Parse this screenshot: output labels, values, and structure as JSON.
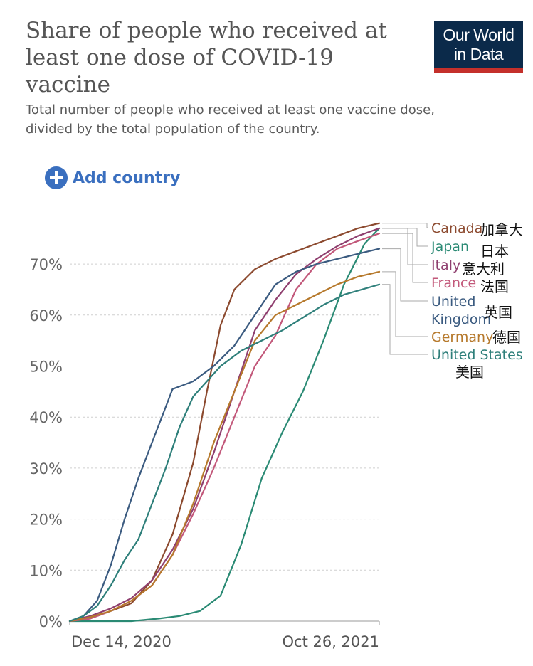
{
  "header": {
    "title": "Share of people who received at least one dose of COVID-19 vaccine",
    "subtitle": "Total number of people who received at least one vaccine dose, divided by the total population of the country.",
    "logo_line1": "Our World",
    "logo_line2": "in Data"
  },
  "controls": {
    "add_country_label": "Add country"
  },
  "annotations": {
    "canada_cn": "加拿大",
    "japan_cn": "日本",
    "italy_cn": "意大利",
    "france_cn": "法国",
    "uk_cn": "英国",
    "germany_cn": "德国",
    "us_cn": "美国"
  },
  "chart_data": {
    "type": "line",
    "title": "Share of people who received at least one dose of COVID-19 vaccine",
    "xlabel": "",
    "ylabel": "",
    "x_tick_labels": [
      "Dec 14, 2020",
      "Oct 26, 2021"
    ],
    "y_ticks": [
      0,
      10,
      20,
      30,
      40,
      50,
      60,
      70
    ],
    "y_tick_labels": [
      "0%",
      "10%",
      "20%",
      "30%",
      "40%",
      "50%",
      "60%",
      "70%"
    ],
    "xlim": [
      "2020-12-14",
      "2021-10-26"
    ],
    "ylim": [
      0,
      80
    ],
    "grid": "horizontal dashed",
    "legend": "right, line end labels",
    "series": [
      {
        "name": "Canada",
        "color": "#8c4a2f",
        "points": [
          [
            "2020-12-14",
            0
          ],
          [
            "2021-01-04",
            0.5
          ],
          [
            "2021-01-25",
            2
          ],
          [
            "2021-02-15",
            3.5
          ],
          [
            "2021-03-08",
            8
          ],
          [
            "2021-03-29",
            17
          ],
          [
            "2021-04-19",
            31
          ],
          [
            "2021-05-03",
            45
          ],
          [
            "2021-05-17",
            58
          ],
          [
            "2021-05-31",
            65
          ],
          [
            "2021-06-21",
            69
          ],
          [
            "2021-07-12",
            71
          ],
          [
            "2021-08-02",
            72.5
          ],
          [
            "2021-08-23",
            74
          ],
          [
            "2021-09-13",
            75.5
          ],
          [
            "2021-10-04",
            77
          ],
          [
            "2021-10-26",
            78
          ]
        ]
      },
      {
        "name": "Japan",
        "color": "#2a8a74",
        "points": [
          [
            "2020-12-14",
            0
          ],
          [
            "2021-02-15",
            0
          ],
          [
            "2021-03-15",
            0.5
          ],
          [
            "2021-04-05",
            1
          ],
          [
            "2021-04-26",
            2
          ],
          [
            "2021-05-17",
            5
          ],
          [
            "2021-06-07",
            15
          ],
          [
            "2021-06-28",
            28
          ],
          [
            "2021-07-19",
            37
          ],
          [
            "2021-08-09",
            45
          ],
          [
            "2021-08-30",
            55
          ],
          [
            "2021-09-20",
            66
          ],
          [
            "2021-10-11",
            74
          ],
          [
            "2021-10-26",
            77
          ]
        ]
      },
      {
        "name": "Italy",
        "color": "#8f3f6f",
        "points": [
          [
            "2020-12-14",
            0
          ],
          [
            "2021-01-04",
            1
          ],
          [
            "2021-01-25",
            2.5
          ],
          [
            "2021-02-15",
            4.5
          ],
          [
            "2021-03-08",
            8
          ],
          [
            "2021-03-29",
            14
          ],
          [
            "2021-04-19",
            22
          ],
          [
            "2021-05-10",
            33
          ],
          [
            "2021-05-31",
            45
          ],
          [
            "2021-06-21",
            57
          ],
          [
            "2021-07-12",
            63
          ],
          [
            "2021-08-02",
            68
          ],
          [
            "2021-08-23",
            71
          ],
          [
            "2021-09-13",
            73.5
          ],
          [
            "2021-10-04",
            75.5
          ],
          [
            "2021-10-26",
            77
          ]
        ]
      },
      {
        "name": "France",
        "color": "#c2587a",
        "points": [
          [
            "2020-12-14",
            0
          ],
          [
            "2021-01-04",
            0.5
          ],
          [
            "2021-01-25",
            2
          ],
          [
            "2021-02-15",
            4
          ],
          [
            "2021-03-08",
            7
          ],
          [
            "2021-03-29",
            13
          ],
          [
            "2021-04-19",
            21
          ],
          [
            "2021-05-10",
            30
          ],
          [
            "2021-05-31",
            40
          ],
          [
            "2021-06-21",
            50
          ],
          [
            "2021-07-12",
            56
          ],
          [
            "2021-08-02",
            65
          ],
          [
            "2021-08-23",
            70
          ],
          [
            "2021-09-13",
            73
          ],
          [
            "2021-10-04",
            74.5
          ],
          [
            "2021-10-26",
            76
          ]
        ]
      },
      {
        "name": "United Kingdom",
        "color": "#3b5b80",
        "points": [
          [
            "2020-12-14",
            0
          ],
          [
            "2020-12-28",
            1
          ],
          [
            "2021-01-11",
            4
          ],
          [
            "2021-01-25",
            11
          ],
          [
            "2021-02-08",
            20
          ],
          [
            "2021-02-22",
            28
          ],
          [
            "2021-03-08",
            35
          ],
          [
            "2021-03-22",
            42
          ],
          [
            "2021-03-29",
            45.5
          ],
          [
            "2021-04-19",
            47
          ],
          [
            "2021-05-10",
            50
          ],
          [
            "2021-05-31",
            54
          ],
          [
            "2021-06-21",
            60
          ],
          [
            "2021-07-12",
            66
          ],
          [
            "2021-08-02",
            68.5
          ],
          [
            "2021-08-23",
            70
          ],
          [
            "2021-09-13",
            71
          ],
          [
            "2021-10-04",
            72
          ],
          [
            "2021-10-26",
            73
          ]
        ]
      },
      {
        "name": "Germany",
        "color": "#b6792c",
        "points": [
          [
            "2020-12-14",
            0
          ],
          [
            "2021-01-04",
            0.8
          ],
          [
            "2021-01-25",
            2
          ],
          [
            "2021-02-15",
            4
          ],
          [
            "2021-03-08",
            7
          ],
          [
            "2021-03-29",
            13
          ],
          [
            "2021-04-19",
            23
          ],
          [
            "2021-05-10",
            35
          ],
          [
            "2021-05-31",
            45
          ],
          [
            "2021-06-21",
            55
          ],
          [
            "2021-07-12",
            60
          ],
          [
            "2021-08-02",
            62
          ],
          [
            "2021-08-23",
            64
          ],
          [
            "2021-09-13",
            66
          ],
          [
            "2021-10-04",
            67.5
          ],
          [
            "2021-10-26",
            68.5
          ]
        ]
      },
      {
        "name": "United States",
        "color": "#2e7f7a",
        "points": [
          [
            "2020-12-14",
            0
          ],
          [
            "2020-12-28",
            1
          ],
          [
            "2021-01-11",
            3
          ],
          [
            "2021-01-25",
            7
          ],
          [
            "2021-02-08",
            12
          ],
          [
            "2021-02-22",
            16
          ],
          [
            "2021-03-08",
            23
          ],
          [
            "2021-03-22",
            30
          ],
          [
            "2021-04-05",
            38
          ],
          [
            "2021-04-19",
            44
          ],
          [
            "2021-05-03",
            47
          ],
          [
            "2021-05-17",
            50
          ],
          [
            "2021-06-07",
            53
          ],
          [
            "2021-06-28",
            55
          ],
          [
            "2021-07-19",
            57
          ],
          [
            "2021-08-09",
            59.5
          ],
          [
            "2021-08-30",
            62
          ],
          [
            "2021-09-20",
            64
          ],
          [
            "2021-10-26",
            66
          ]
        ]
      }
    ]
  }
}
